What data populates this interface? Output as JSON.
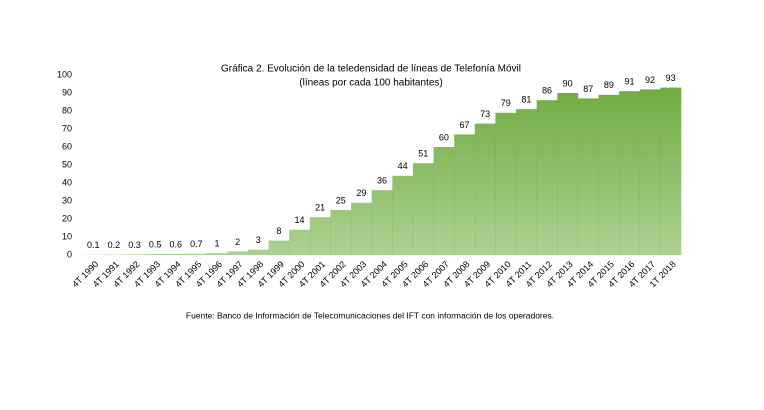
{
  "chart_data": {
    "type": "bar",
    "title": "Gráfica 2. Evolución de la teledensidad de líneas de Telefonía Móvil",
    "subtitle": "(líneas por cada 100 habitantes)",
    "source": "Fuente: Banco de Información de Telecomunicaciones del IFT con información de los operadores.",
    "categories": [
      "4T 1990",
      "4T 1991",
      "4T 1992",
      "4T 1993",
      "4T 1994",
      "4T 1995",
      "4T 1996",
      "4T 1997",
      "4T 1998",
      "4T 1999",
      "4T 2000",
      "4T 2001",
      "4T 2002",
      "4T 2003",
      "4T 2004",
      "4T 2005",
      "4T 2006",
      "4T 2007",
      "4T 2008",
      "4T 2009",
      "4T 2010",
      "4T 2011",
      "4T 2012",
      "4T 2013",
      "4T 2014",
      "4T 2015",
      "4T 2016",
      "4T 2017",
      "1T 2018"
    ],
    "values": [
      0.1,
      0.2,
      0.3,
      0.5,
      0.6,
      0.7,
      1,
      2,
      3,
      8,
      14,
      21,
      25,
      29,
      36,
      44,
      51,
      60,
      67,
      73,
      79,
      81,
      86,
      90,
      87,
      89,
      91,
      92,
      93
    ],
    "color": "#6aaa3a",
    "ylim": [
      0,
      100
    ],
    "yticks": [
      0,
      10,
      20,
      30,
      40,
      50,
      60,
      70,
      80,
      90,
      100
    ],
    "grid": false
  }
}
